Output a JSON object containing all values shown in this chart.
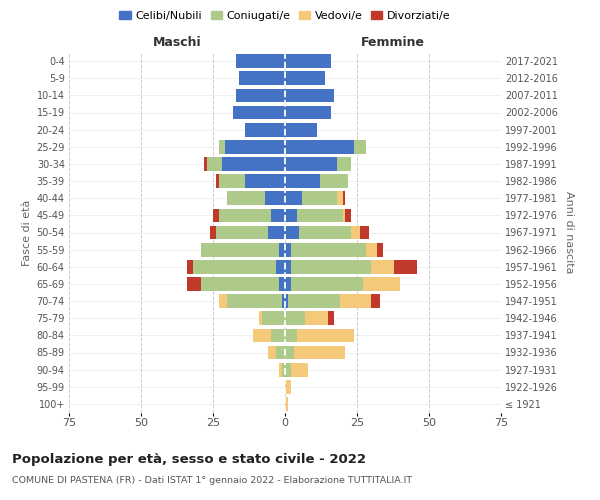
{
  "age_groups": [
    "100+",
    "95-99",
    "90-94",
    "85-89",
    "80-84",
    "75-79",
    "70-74",
    "65-69",
    "60-64",
    "55-59",
    "50-54",
    "45-49",
    "40-44",
    "35-39",
    "30-34",
    "25-29",
    "20-24",
    "15-19",
    "10-14",
    "5-9",
    "0-4"
  ],
  "birth_years": [
    "≤ 1921",
    "1922-1926",
    "1927-1931",
    "1932-1936",
    "1937-1941",
    "1942-1946",
    "1947-1951",
    "1952-1956",
    "1957-1961",
    "1962-1966",
    "1967-1971",
    "1972-1976",
    "1977-1981",
    "1982-1986",
    "1987-1991",
    "1992-1996",
    "1997-2001",
    "2002-2006",
    "2007-2011",
    "2012-2016",
    "2017-2021"
  ],
  "maschi": {
    "celibi": [
      0,
      0,
      0,
      0,
      0,
      0,
      1,
      2,
      3,
      2,
      6,
      5,
      7,
      14,
      22,
      21,
      14,
      18,
      17,
      16,
      17
    ],
    "coniugati": [
      0,
      0,
      1,
      3,
      5,
      8,
      19,
      27,
      29,
      27,
      18,
      18,
      13,
      9,
      5,
      2,
      0,
      0,
      0,
      0,
      0
    ],
    "vedovi": [
      0,
      0,
      1,
      3,
      6,
      1,
      3,
      0,
      0,
      0,
      0,
      0,
      0,
      0,
      0,
      0,
      0,
      0,
      0,
      0,
      0
    ],
    "divorziati": [
      0,
      0,
      0,
      0,
      0,
      0,
      0,
      5,
      2,
      0,
      2,
      2,
      0,
      1,
      1,
      0,
      0,
      0,
      0,
      0,
      0
    ]
  },
  "femmine": {
    "nubili": [
      0,
      0,
      0,
      0,
      0,
      0,
      1,
      2,
      2,
      2,
      5,
      4,
      6,
      12,
      18,
      24,
      11,
      16,
      17,
      14,
      16
    ],
    "coniugate": [
      0,
      0,
      2,
      3,
      4,
      7,
      18,
      25,
      28,
      26,
      18,
      16,
      12,
      10,
      5,
      4,
      0,
      0,
      0,
      0,
      0
    ],
    "vedove": [
      1,
      2,
      6,
      18,
      20,
      8,
      11,
      13,
      8,
      4,
      3,
      1,
      2,
      0,
      0,
      0,
      0,
      0,
      0,
      0,
      0
    ],
    "divorziate": [
      0,
      0,
      0,
      0,
      0,
      2,
      3,
      0,
      8,
      2,
      3,
      2,
      1,
      0,
      0,
      0,
      0,
      0,
      0,
      0,
      0
    ]
  },
  "color_celibi": "#4472C4",
  "color_coniugati": "#AECA8A",
  "color_vedovi": "#F5C97A",
  "color_divorziati": "#C0392B",
  "title": "Popolazione per età, sesso e stato civile - 2022",
  "subtitle": "COMUNE DI PASTENA (FR) - Dati ISTAT 1° gennaio 2022 - Elaborazione TUTTITALIA.IT",
  "xlabel_left": "Maschi",
  "xlabel_right": "Femmine",
  "ylabel_left": "Fasce di età",
  "ylabel_right": "Anni di nascita",
  "xlim": 75,
  "bg_color": "#ffffff",
  "grid_color": "#cccccc"
}
